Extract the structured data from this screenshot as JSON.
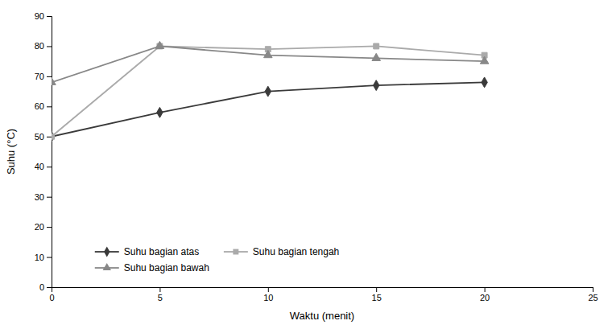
{
  "chart_data": {
    "type": "line",
    "xlabel": "Waktu (menit)",
    "ylabel": "Suhu (°C)",
    "x": [
      0,
      5,
      10,
      15,
      20
    ],
    "series": [
      {
        "name": "Suhu bagian atas",
        "color": "#3a3a3a",
        "marker": "diamond",
        "values": [
          50,
          58,
          65,
          67,
          68
        ]
      },
      {
        "name": "Suhu bagian tengah",
        "color": "#aaaaaa",
        "marker": "square",
        "values": [
          50,
          80,
          79,
          80,
          77
        ]
      },
      {
        "name": "Suhu bagian bawah",
        "color": "#888888",
        "marker": "triangle",
        "values": [
          68,
          80,
          77,
          76,
          75
        ]
      }
    ],
    "xlim": [
      0,
      25
    ],
    "ylim": [
      0,
      90
    ],
    "xticks": [
      0,
      5,
      10,
      15,
      20,
      25
    ],
    "yticks": [
      0,
      10,
      20,
      30,
      40,
      50,
      60,
      70,
      80,
      90
    ],
    "grid": false,
    "legend": "lower left"
  }
}
